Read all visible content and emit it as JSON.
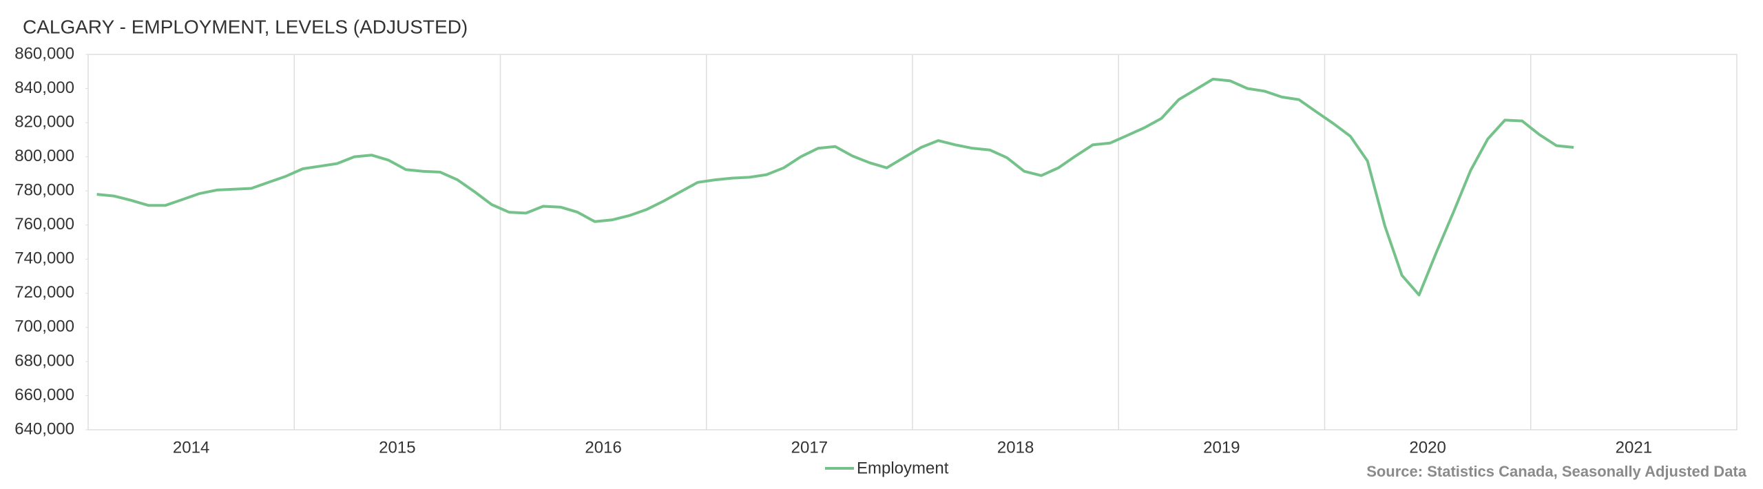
{
  "chart_data": {
    "type": "line",
    "title": "CALGARY -  EMPLOYMENT, LEVELS (ADJUSTED)",
    "source": "Source: Statistics Canada, Seasonally Adjusted Data",
    "x": [
      2014.042,
      2014.125,
      2014.208,
      2014.292,
      2014.375,
      2014.458,
      2014.542,
      2014.625,
      2014.708,
      2014.792,
      2014.875,
      2014.958,
      2015.042,
      2015.125,
      2015.208,
      2015.292,
      2015.375,
      2015.458,
      2015.542,
      2015.625,
      2015.708,
      2015.792,
      2015.875,
      2015.958,
      2016.042,
      2016.125,
      2016.208,
      2016.292,
      2016.375,
      2016.458,
      2016.542,
      2016.625,
      2016.708,
      2016.792,
      2016.875,
      2016.958,
      2017.042,
      2017.125,
      2017.208,
      2017.292,
      2017.375,
      2017.458,
      2017.542,
      2017.625,
      2017.708,
      2017.792,
      2017.875,
      2017.958,
      2018.042,
      2018.125,
      2018.208,
      2018.292,
      2018.375,
      2018.458,
      2018.542,
      2018.625,
      2018.708,
      2018.792,
      2018.875,
      2018.958,
      2019.042,
      2019.125,
      2019.208,
      2019.292,
      2019.375,
      2019.458,
      2019.542,
      2019.625,
      2019.708,
      2019.792,
      2019.875,
      2019.958,
      2020.042,
      2020.125,
      2020.208,
      2020.292,
      2020.375,
      2020.458,
      2020.542,
      2020.625,
      2020.708,
      2020.792,
      2020.875,
      2020.958,
      2021.042,
      2021.125,
      2021.208
    ],
    "series": [
      {
        "name": "Employment",
        "color": "#74c28a",
        "values": [
          778000,
          777000,
          774500,
          771500,
          771500,
          775000,
          778500,
          780500,
          781000,
          781500,
          785000,
          788500,
          793000,
          794500,
          796000,
          800000,
          801000,
          798000,
          792500,
          791500,
          791000,
          786500,
          779500,
          772000,
          767500,
          767000,
          771000,
          770500,
          767500,
          762000,
          763000,
          765500,
          769000,
          774000,
          779500,
          785000,
          786500,
          787500,
          788000,
          789500,
          793500,
          800000,
          805000,
          806000,
          800500,
          796500,
          793500,
          799500,
          805500,
          809500,
          807000,
          805000,
          804000,
          799500,
          791500,
          789000,
          793500,
          800500,
          807000,
          808000,
          812500,
          817000,
          822500,
          833500,
          839500,
          845500,
          844500,
          840000,
          838500,
          835000,
          833500,
          826500,
          819500,
          812000,
          797500,
          759500,
          730500,
          719000,
          744000,
          767500,
          792000,
          810500,
          821500,
          821000,
          813000,
          806500,
          805500
        ]
      }
    ],
    "xlim": [
      2014,
      2022
    ],
    "xticks": [
      {
        "value": 2014.5,
        "label": "2014"
      },
      {
        "value": 2015.5,
        "label": "2015"
      },
      {
        "value": 2016.5,
        "label": "2016"
      },
      {
        "value": 2017.5,
        "label": "2017"
      },
      {
        "value": 2018.5,
        "label": "2018"
      },
      {
        "value": 2019.5,
        "label": "2019"
      },
      {
        "value": 2020.5,
        "label": "2020"
      },
      {
        "value": 2021.5,
        "label": "2021"
      }
    ],
    "xgrid": [
      2015,
      2016,
      2017,
      2018,
      2019,
      2020,
      2021
    ],
    "ylim": [
      640000,
      860000
    ],
    "yticks": [
      {
        "value": 640000,
        "label": "640,000"
      },
      {
        "value": 660000,
        "label": "660,000"
      },
      {
        "value": 680000,
        "label": "680,000"
      },
      {
        "value": 700000,
        "label": "700,000"
      },
      {
        "value": 720000,
        "label": "720,000"
      },
      {
        "value": 740000,
        "label": "740,000"
      },
      {
        "value": 760000,
        "label": "760,000"
      },
      {
        "value": 780000,
        "label": "780,000"
      },
      {
        "value": 800000,
        "label": "800,000"
      },
      {
        "value": 820000,
        "label": "820,000"
      },
      {
        "value": 840000,
        "label": "840,000"
      },
      {
        "value": 860000,
        "label": "860,000"
      }
    ],
    "legend": "bottom"
  }
}
